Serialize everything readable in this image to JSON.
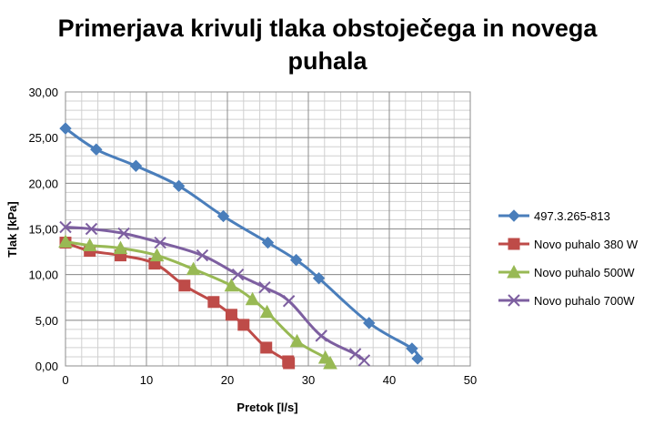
{
  "chart_data": {
    "type": "line",
    "title": "Primerjava krivulj tlaka obstoječega in novega puhala",
    "title_lines": [
      "Primerjava krivulj tlaka obstoječega in novega",
      "puhala"
    ],
    "xlabel": "Pretok [l/s]",
    "ylabel": "Tlak [kPa]",
    "xlim": [
      0,
      50
    ],
    "ylim": [
      0,
      30
    ],
    "x_ticks": [
      0,
      10,
      20,
      30,
      40,
      50
    ],
    "x_tick_labels": [
      "0",
      "10",
      "20",
      "30",
      "40",
      "50"
    ],
    "y_ticks": [
      0,
      5,
      10,
      15,
      20,
      25,
      30
    ],
    "y_tick_labels": [
      "0,00",
      "5,00",
      "10,00",
      "15,00",
      "20,00",
      "25,00",
      "30,00"
    ],
    "grid": true,
    "legend_position": "right",
    "series": [
      {
        "name": "497.3.265-813",
        "color": "#4a7ebb",
        "marker": "diamond",
        "points": [
          [
            0,
            26.0
          ],
          [
            3.8,
            23.7
          ],
          [
            8.7,
            21.9
          ],
          [
            14.0,
            19.7
          ],
          [
            19.5,
            16.4
          ],
          [
            25.0,
            13.5
          ],
          [
            28.5,
            11.6
          ],
          [
            31.3,
            9.6
          ],
          [
            37.5,
            4.7
          ],
          [
            42.8,
            1.9
          ],
          [
            43.5,
            0.8
          ]
        ]
      },
      {
        "name": "Novo puhalo 380 W",
        "color": "#be4b48",
        "marker": "square",
        "points": [
          [
            0,
            13.5
          ],
          [
            3.0,
            12.6
          ],
          [
            6.8,
            12.1
          ],
          [
            11.0,
            11.2
          ],
          [
            14.7,
            8.8
          ],
          [
            18.3,
            7.0
          ],
          [
            20.5,
            5.6
          ],
          [
            22.0,
            4.5
          ],
          [
            24.8,
            2.0
          ],
          [
            27.5,
            0.5
          ],
          [
            27.6,
            0.3
          ]
        ]
      },
      {
        "name": "Novo puhalo 500W",
        "color": "#98b954",
        "marker": "triangle",
        "points": [
          [
            0,
            13.6
          ],
          [
            3.0,
            13.2
          ],
          [
            6.8,
            12.9
          ],
          [
            11.3,
            12.1
          ],
          [
            15.8,
            10.6
          ],
          [
            20.5,
            8.8
          ],
          [
            23.1,
            7.3
          ],
          [
            24.9,
            5.9
          ],
          [
            28.6,
            2.7
          ],
          [
            32.1,
            0.9
          ],
          [
            32.7,
            0.3
          ]
        ]
      },
      {
        "name": "Novo puhalo 700W",
        "color": "#7d5fa0",
        "marker": "x",
        "points": [
          [
            0,
            15.2
          ],
          [
            3.2,
            15.0
          ],
          [
            7.2,
            14.5
          ],
          [
            11.7,
            13.5
          ],
          [
            16.9,
            12.1
          ],
          [
            21.3,
            10.0
          ],
          [
            24.6,
            8.6
          ],
          [
            27.6,
            7.1
          ],
          [
            31.6,
            3.3
          ],
          [
            35.8,
            1.3
          ],
          [
            36.9,
            0.6
          ]
        ]
      }
    ]
  }
}
